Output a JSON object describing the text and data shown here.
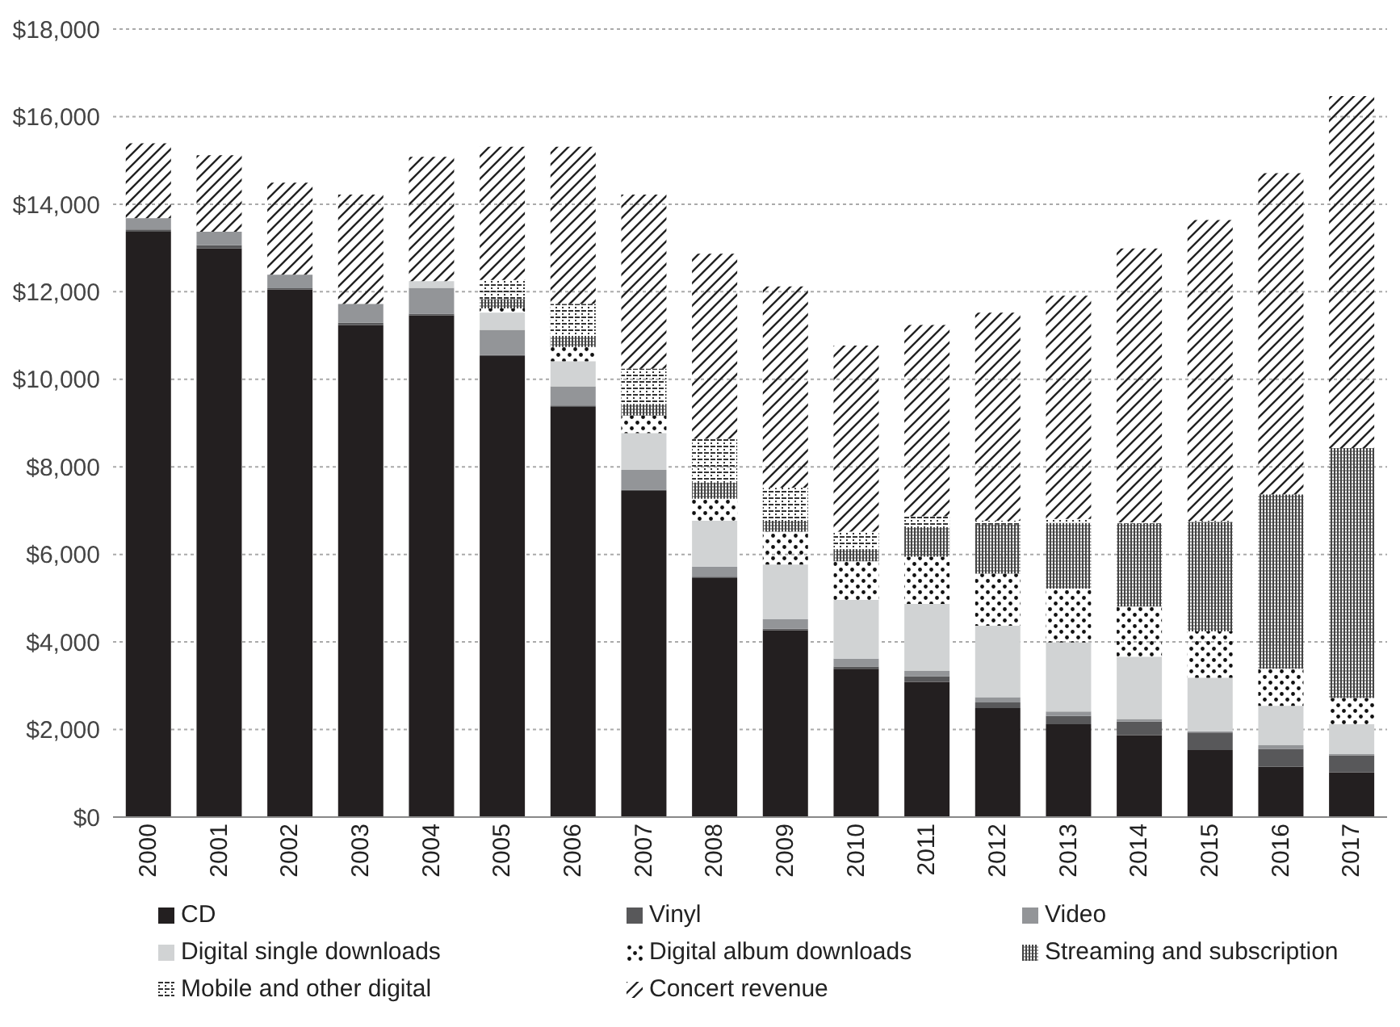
{
  "chart_data": {
    "type": "bar",
    "stacked": true,
    "categories": [
      "2000",
      "2001",
      "2002",
      "2003",
      "2004",
      "2005",
      "2006",
      "2007",
      "2008",
      "2009",
      "2010",
      "2011",
      "2012",
      "2013",
      "2014",
      "2015",
      "2016",
      "2017"
    ],
    "series": [
      {
        "name": "CD",
        "color": "#231f20",
        "values": [
          13370,
          12990,
          12050,
          11240,
          11460,
          10530,
          9370,
          7450,
          5460,
          4270,
          3390,
          3090,
          2490,
          2120,
          1870,
          1530,
          1150,
          1020
        ]
      },
      {
        "name": "Vinyl",
        "color": "#58585a",
        "values": [
          50,
          70,
          30,
          50,
          40,
          30,
          30,
          30,
          30,
          30,
          50,
          130,
          130,
          190,
          310,
          400,
          410,
          390
        ]
      },
      {
        "name": "Video",
        "color": "#939598",
        "values": [
          260,
          310,
          310,
          430,
          590,
          570,
          440,
          450,
          230,
          220,
          180,
          120,
          120,
          100,
          60,
          30,
          80,
          30
        ]
      },
      {
        "name": "Digital single downloads",
        "color": "#d1d3d4",
        "values": [
          0,
          0,
          0,
          0,
          150,
          390,
          570,
          840,
          1050,
          1250,
          1340,
          1530,
          1630,
          1580,
          1420,
          1220,
          900,
          680
        ]
      },
      {
        "name": "Digital album downloads",
        "color": "#111111",
        "values": [
          0,
          0,
          0,
          0,
          0,
          100,
          330,
          400,
          500,
          750,
          880,
          1080,
          1190,
          1230,
          1150,
          1060,
          850,
          600
        ]
      },
      {
        "name": "Streaming and subscription",
        "color": "#444444",
        "values": [
          0,
          0,
          0,
          0,
          0,
          210,
          250,
          260,
          370,
          250,
          280,
          670,
          1120,
          1500,
          1890,
          2500,
          3980,
          5710
        ]
      },
      {
        "name": "Mobile and other digital",
        "color": "#333333",
        "values": [
          0,
          0,
          0,
          0,
          0,
          440,
          730,
          810,
          1000,
          750,
          400,
          250,
          90,
          90,
          30,
          30,
          0,
          0
        ]
      },
      {
        "name": "Concert revenue",
        "color": "#222222",
        "values": [
          1710,
          1750,
          2100,
          2500,
          2840,
          3040,
          3590,
          3980,
          4230,
          4600,
          4250,
          4370,
          4750,
          5100,
          6260,
          6870,
          7340,
          8040
        ]
      }
    ],
    "ylim": [
      0,
      18000
    ],
    "yticks": [
      {
        "value": 0,
        "label": "$0"
      },
      {
        "value": 2000,
        "label": "$2,000"
      },
      {
        "value": 4000,
        "label": "$4,000"
      },
      {
        "value": 6000,
        "label": "$6,000"
      },
      {
        "value": 8000,
        "label": "$8,000"
      },
      {
        "value": 10000,
        "label": "$10,000"
      },
      {
        "value": 12000,
        "label": "$12,000"
      },
      {
        "value": 14000,
        "label": "$14,000"
      },
      {
        "value": 16000,
        "label": "$16,000"
      },
      {
        "value": 18000,
        "label": "$18,000"
      }
    ],
    "grid": "y",
    "legend": "bottom"
  }
}
